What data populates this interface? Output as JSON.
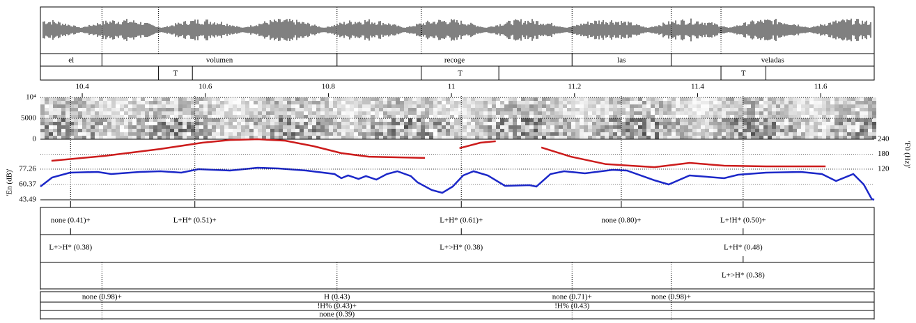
{
  "time_axis": {
    "xlim": [
      10.332,
      11.687
    ],
    "xticks": [
      10.4,
      10.6,
      10.8,
      11,
      11.2,
      11.4,
      11.6
    ]
  },
  "words": {
    "labels": [
      "el",
      "volumen",
      "recoge",
      "las",
      "veladas"
    ],
    "bounds": [
      10.332,
      10.432,
      10.814,
      11.196,
      11.357,
      11.687
    ]
  },
  "tones": [
    {
      "label": "T",
      "start": 10.524,
      "end": 10.579
    },
    {
      "label": "T",
      "start": 10.951,
      "end": 11.077
    },
    {
      "label": "T",
      "start": 11.438,
      "end": 11.511
    }
  ],
  "spectrogram": {
    "ylim": [
      0,
      10000
    ],
    "yticks": [
      0,
      5000,
      {
        "value": 10000,
        "label": "10⁴"
      }
    ]
  },
  "f0": {
    "axis_label": "'F0 (Hz)'",
    "ylim": [
      -3,
      240
    ],
    "yticks": [
      120,
      180,
      240
    ],
    "color": "#cc1c1c",
    "x": [
      10.35,
      10.436,
      10.527,
      10.595,
      10.64,
      10.685,
      10.73,
      10.776,
      10.821,
      10.866,
      10.957,
      11.0,
      11.013,
      11.047,
      11.072,
      11.11,
      11.146,
      11.194,
      11.251,
      11.33,
      11.387,
      11.443,
      11.511,
      11.608
    ],
    "values": [
      153.5,
      173,
      201,
      226,
      237,
      240,
      234,
      212,
      184,
      170,
      165,
      null,
      204,
      226,
      232,
      null,
      207,
      170,
      140,
      128,
      145,
      134,
      131,
      131
    ]
  },
  "energy": {
    "axis_label": "'En (dB)'",
    "ylim": [
      43.49,
      110.26
    ],
    "yticks": [
      43.49,
      60.37,
      77.26
    ],
    "color": "#1c28c8",
    "x": [
      10.332,
      10.351,
      10.38,
      10.425,
      10.447,
      10.493,
      10.527,
      10.561,
      10.589,
      10.64,
      10.685,
      10.719,
      10.764,
      10.81,
      10.821,
      10.832,
      10.849,
      10.861,
      10.878,
      10.895,
      10.912,
      10.934,
      10.945,
      10.968,
      10.985,
      11.002,
      11.019,
      11.036,
      11.059,
      11.087,
      11.127,
      11.138,
      11.161,
      11.183,
      11.217,
      11.262,
      11.285,
      11.33,
      11.353,
      11.387,
      11.443,
      11.466,
      11.511,
      11.568,
      11.602,
      11.625,
      11.653,
      11.67,
      11.683,
      11.687
    ],
    "values": [
      58.07,
      68.05,
      73.42,
      74.19,
      71.89,
      74.19,
      74.96,
      73.42,
      77.26,
      75.73,
      78.8,
      78.03,
      75.73,
      71.89,
      67.28,
      70.35,
      66.51,
      69.59,
      65.75,
      71.89,
      74.96,
      69.59,
      62.68,
      54.24,
      51.17,
      58.07,
      70.35,
      74.96,
      70.35,
      58.84,
      59.61,
      58.07,
      71.89,
      74.96,
      72.66,
      76.49,
      75.73,
      64.98,
      60.37,
      70.35,
      67.28,
      71.12,
      73.42,
      74.19,
      71.89,
      64.21,
      71.89,
      60.37,
      44.26,
      43.49
    ]
  },
  "tiers": [
    {
      "points": [
        {
          "time": 10.381,
          "label": "none (0.41)+"
        },
        {
          "time": 10.583,
          "label": "L+H* (0.51)+"
        },
        {
          "time": 11.016,
          "label": "L+H* (0.61)+"
        },
        {
          "time": 11.276,
          "label": "none (0.80)+"
        },
        {
          "time": 11.474,
          "label": "L+!H* (0.50)+"
        }
      ]
    },
    {
      "points": [
        {
          "time": 10.381,
          "label": "L+>H* (0.38)"
        },
        {
          "time": 11.016,
          "label": "L+>H* (0.38)"
        },
        {
          "time": 11.474,
          "label": "L+H* (0.48)"
        }
      ]
    },
    {
      "points": [
        {
          "time": 11.474,
          "label": "L+>H* (0.38)"
        }
      ]
    }
  ],
  "boundary_tier": {
    "rows": [
      [
        {
          "time": 10.432,
          "label": "none (0.98)+"
        },
        {
          "time": 10.814,
          "label": "H (0.43)"
        },
        {
          "time": 11.196,
          "label": "none (0.71)+"
        },
        {
          "time": 11.357,
          "label": "none (0.98)+"
        }
      ],
      [
        {
          "time": 10.814,
          "label": "!H% (0.43)+"
        },
        {
          "time": 11.196,
          "label": "!H% (0.43)"
        }
      ],
      [
        {
          "time": 10.814,
          "label": "none (0.39)"
        }
      ]
    ]
  }
}
